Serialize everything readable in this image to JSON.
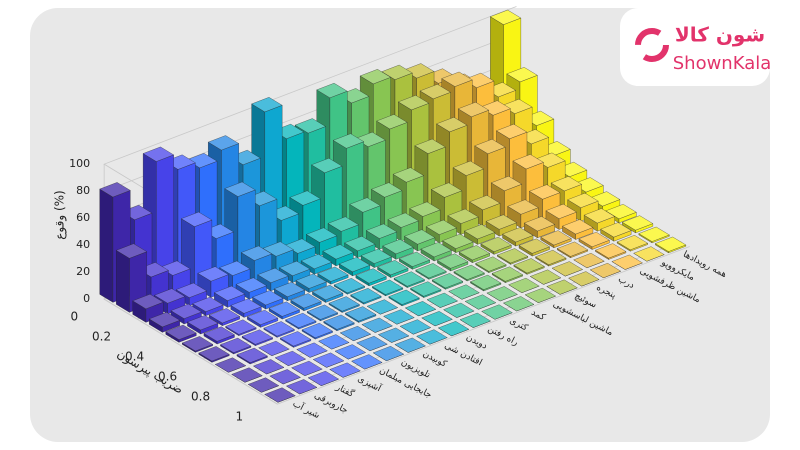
{
  "logo": {
    "name": "شون کالا",
    "latin": "ShownKala"
  },
  "chart_data": {
    "type": "bar3d",
    "zlabel": "وقوع (%)",
    "xlabel": "ضریب پیرسون",
    "x": [
      0,
      0.1,
      0.2,
      0.3,
      0.4,
      0.5,
      0.6,
      0.7,
      0.8,
      0.9,
      1
    ],
    "xlim": [
      0,
      1
    ],
    "xticks": [
      0,
      0.2,
      0.4,
      0.6,
      0.8,
      1
    ],
    "zlim": [
      0,
      100
    ],
    "zticks": [
      0,
      20,
      40,
      60,
      80,
      100
    ],
    "grid": true,
    "series": [
      {
        "name": "شیر آب",
        "color": "#3e26a8",
        "values": [
          78,
          40,
          10,
          4,
          2,
          1,
          1,
          0,
          0,
          0,
          0
        ]
      },
      {
        "name": "جاروبرقی",
        "color": "#4433d0",
        "values": [
          55,
          20,
          8,
          4,
          3,
          2,
          1,
          1,
          0,
          0,
          0
        ]
      },
      {
        "name": "گفتار",
        "color": "#4743e9",
        "values": [
          92,
          15,
          6,
          3,
          2,
          1,
          1,
          0,
          0,
          0,
          0
        ]
      },
      {
        "name": "آشپزی",
        "color": "#4258f9",
        "values": [
          80,
          45,
          12,
          5,
          3,
          2,
          1,
          1,
          0,
          0,
          0
        ]
      },
      {
        "name": "جابجایی مبلمان",
        "color": "#2f6ffc",
        "values": [
          75,
          30,
          10,
          5,
          3,
          2,
          1,
          1,
          0,
          0,
          0
        ]
      },
      {
        "name": "تلویزیون",
        "color": "#2485e4",
        "values": [
          82,
          55,
          15,
          6,
          3,
          2,
          1,
          1,
          0,
          0,
          0
        ]
      },
      {
        "name": "کوبیدن",
        "color": "#1c96da",
        "values": [
          65,
          42,
          12,
          5,
          3,
          2,
          1,
          1,
          0,
          0,
          0
        ]
      },
      {
        "name": "افتادن شی",
        "color": "#0ea7d0",
        "values": [
          98,
          25,
          8,
          4,
          2,
          1,
          1,
          0,
          0,
          0,
          0
        ]
      },
      {
        "name": "دویدن",
        "color": "#04b5bb",
        "values": [
          72,
          30,
          10,
          5,
          3,
          2,
          1,
          1,
          0,
          0,
          0
        ]
      },
      {
        "name": "راه رفتن",
        "color": "#20bea0",
        "values": [
          70,
          48,
          12,
          5,
          3,
          2,
          1,
          1,
          0,
          0,
          0
        ]
      },
      {
        "name": "کتری",
        "color": "#40c386",
        "values": [
          90,
          60,
          20,
          8,
          4,
          2,
          1,
          1,
          0,
          0,
          0
        ]
      },
      {
        "name": "کمد",
        "color": "#63c56c",
        "values": [
          80,
          55,
          25,
          10,
          5,
          3,
          2,
          1,
          1,
          0,
          0
        ]
      },
      {
        "name": "ماشین لباسشویی",
        "color": "#88c552",
        "values": [
          88,
          62,
          30,
          12,
          6,
          3,
          2,
          1,
          1,
          0,
          0
        ]
      },
      {
        "name": "سوئیچ",
        "color": "#aac13e",
        "values": [
          85,
          70,
          45,
          20,
          8,
          4,
          2,
          1,
          1,
          0,
          0
        ]
      },
      {
        "name": "پنجره",
        "color": "#cbbc35",
        "values": [
          80,
          72,
          55,
          30,
          12,
          5,
          3,
          2,
          1,
          0,
          0
        ]
      },
      {
        "name": "درب",
        "color": "#e8b638",
        "values": [
          70,
          75,
          60,
          40,
          20,
          10,
          5,
          2,
          1,
          0,
          0
        ]
      },
      {
        "name": "ماشین ظرفشویی",
        "color": "#fcbe3c",
        "values": [
          60,
          68,
          55,
          45,
          30,
          15,
          8,
          4,
          2,
          1,
          0
        ]
      },
      {
        "name": "مایکروویو",
        "color": "#f5d82a",
        "values": [
          40,
          55,
          50,
          35,
          25,
          15,
          10,
          6,
          3,
          1,
          0
        ]
      },
      {
        "name": "همه رویدادها",
        "color": "#f9f514",
        "values": [
          95,
          60,
          35,
          20,
          12,
          8,
          5,
          3,
          2,
          1,
          1
        ]
      }
    ]
  }
}
